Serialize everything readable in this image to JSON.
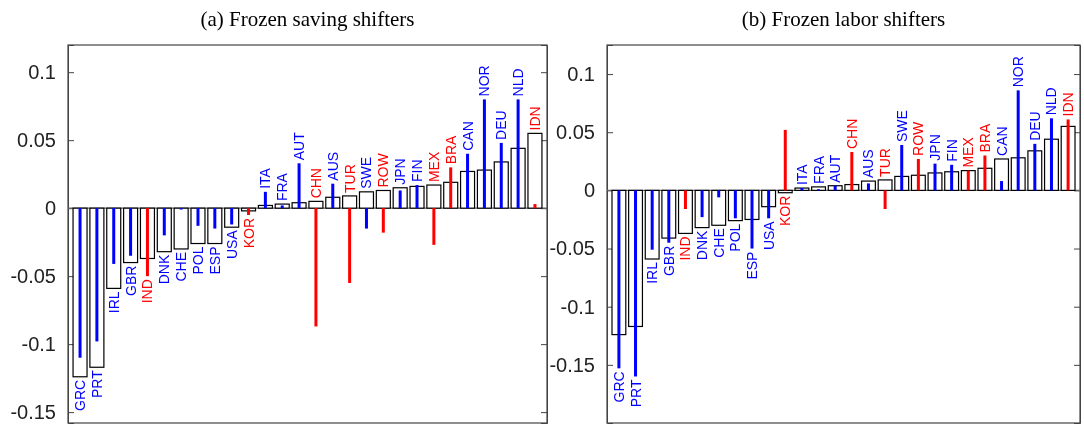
{
  "chart_data": [
    {
      "type": "bar",
      "title": "(a) Frozen saving shifters",
      "categories": [
        "GRC",
        "PRT",
        "IRL",
        "GBR",
        "IND",
        "DNK",
        "CHE",
        "POL",
        "ESP",
        "USA",
        "KOR",
        "ITA",
        "FRA",
        "AUT",
        "CHN",
        "AUS",
        "TUR",
        "SWE",
        "ROW",
        "JPN",
        "FIN",
        "MEX",
        "BRA",
        "CAN",
        "NOR",
        "DEU",
        "NLD",
        "IDN"
      ],
      "series": [
        {
          "color": "#ffffff",
          "values": [
            -0.124,
            -0.117,
            -0.059,
            -0.04,
            -0.037,
            -0.032,
            -0.03,
            -0.026,
            -0.026,
            -0.014,
            -0.002,
            0.002,
            0.003,
            0.004,
            0.005,
            0.008,
            0.009,
            0.012,
            0.013,
            0.015,
            0.016,
            0.017,
            0.019,
            0.027,
            0.028,
            0.034,
            0.044,
            0.055
          ]
        },
        {
          "colors": [
            "#0000ff",
            "#0000ff",
            "#0000ff",
            "#0000ff",
            "#ff0000",
            "#0000ff",
            "#0000ff",
            "#0000ff",
            "#0000ff",
            "#0000ff",
            "#ff0000",
            "#0000ff",
            "#0000ff",
            "#0000ff",
            "#ff0000",
            "#0000ff",
            "#ff0000",
            "#0000ff",
            "#ff0000",
            "#0000ff",
            "#0000ff",
            "#ff0000",
            "#ff0000",
            "#0000ff",
            "#0000ff",
            "#0000ff",
            "#0000ff",
            "#ff0000"
          ],
          "values": [
            -0.11,
            -0.098,
            -0.041,
            -0.035,
            -0.05,
            -0.02,
            -0.001,
            -0.013,
            -0.015,
            -0.012,
            -0.005,
            0.012,
            0.002,
            0.033,
            -0.087,
            0.018,
            -0.055,
            -0.015,
            -0.018,
            0.013,
            0.017,
            -0.027,
            0.03,
            0.04,
            0.08,
            0.048,
            0.08,
            0.003
          ]
        }
      ],
      "ylim": [
        -0.158,
        0.12
      ],
      "yticks": [
        -0.15,
        -0.1,
        -0.05,
        0,
        0.05,
        0.1
      ]
    },
    {
      "type": "bar",
      "title": "(b) Frozen labor shifters",
      "categories": [
        "GRC",
        "PRT",
        "IRL",
        "GBR",
        "IND",
        "DNK",
        "CHE",
        "POL",
        "ESP",
        "USA",
        "KOR",
        "ITA",
        "FRA",
        "AUT",
        "CHN",
        "AUS",
        "TUR",
        "SWE",
        "ROW",
        "JPN",
        "FIN",
        "MEX",
        "BRA",
        "CAN",
        "NOR",
        "DEU",
        "NLD",
        "IDN"
      ],
      "series": [
        {
          "color": "#ffffff",
          "values": [
            -0.124,
            -0.117,
            -0.059,
            -0.041,
            -0.037,
            -0.032,
            -0.03,
            -0.026,
            -0.025,
            -0.014,
            -0.002,
            0.002,
            0.003,
            0.004,
            0.005,
            0.008,
            0.009,
            0.012,
            0.013,
            0.015,
            0.016,
            0.017,
            0.019,
            0.027,
            0.028,
            0.034,
            0.044,
            0.055
          ]
        },
        {
          "colors": [
            "#0000ff",
            "#0000ff",
            "#0000ff",
            "#0000ff",
            "#ff0000",
            "#0000ff",
            "#0000ff",
            "#0000ff",
            "#0000ff",
            "#0000ff",
            "#ff0000",
            "#0000ff",
            "#0000ff",
            "#0000ff",
            "#ff0000",
            "#0000ff",
            "#ff0000",
            "#0000ff",
            "#ff0000",
            "#0000ff",
            "#0000ff",
            "#ff0000",
            "#ff0000",
            "#0000ff",
            "#0000ff",
            "#0000ff",
            "#0000ff",
            "#ff0000"
          ],
          "values": [
            -0.153,
            -0.16,
            -0.051,
            -0.045,
            -0.016,
            -0.023,
            -0.006,
            -0.024,
            -0.05,
            -0.024,
            0.052,
            0.002,
            0.001,
            0.004,
            0.033,
            0.006,
            -0.016,
            0.039,
            0.027,
            0.023,
            0.022,
            0.017,
            0.03,
            0.008,
            0.086,
            0.04,
            0.062,
            0.061
          ]
        }
      ],
      "ylim": [
        -0.2,
        0.125
      ],
      "yticks": [
        -0.15,
        -0.1,
        -0.05,
        0,
        0.05,
        0.1
      ]
    }
  ]
}
